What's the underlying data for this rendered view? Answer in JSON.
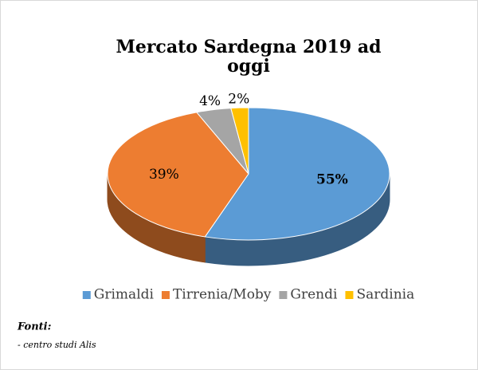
{
  "chart_data": {
    "type": "pie",
    "title": "Mercato Sardegna 2019 ad oggi",
    "categories": [
      "Grimaldi",
      "Tirrenia/Moby",
      "Grendi",
      "Sardinia"
    ],
    "values": [
      55,
      39,
      4,
      2
    ],
    "value_labels": [
      "55%",
      "39%",
      "4%",
      "2%"
    ],
    "colors": [
      "#5b9bd5",
      "#ed7d31",
      "#a5a5a5",
      "#ffc000"
    ],
    "legend": "bottom",
    "source_title": "Fonti:",
    "source": "- centro studi Alis"
  }
}
